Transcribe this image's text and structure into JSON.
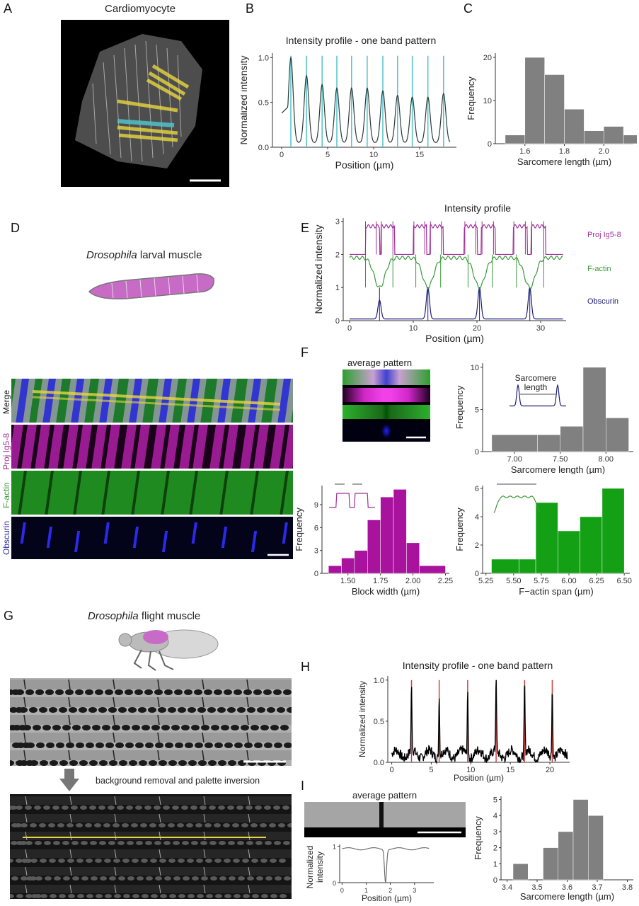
{
  "panels": {
    "A": {
      "letter": "A",
      "title": "Cardiomyocyte"
    },
    "B": {
      "letter": "B",
      "title": "Intensity profile - one band pattern"
    },
    "C": {
      "letter": "C"
    },
    "D": {
      "letter": "D",
      "title_italic": "Drosophila",
      "title_rest": " larval muscle"
    },
    "E": {
      "letter": "E",
      "title": "Intensity profile"
    },
    "F": {
      "letter": "F",
      "avg_title": "average pattern",
      "inset_label_1": "Sarcomere",
      "inset_label_2": "length"
    },
    "G": {
      "letter": "G",
      "title_italic": "Drosophila",
      "title_rest": " flight muscle",
      "arrow_caption": "background removal and palette inversion"
    },
    "H": {
      "letter": "H",
      "title": "Intensity profile - one band pattern"
    },
    "I": {
      "letter": "I",
      "avg_title": "average pattern"
    }
  },
  "channels": {
    "merge": "Merge",
    "proj": "Proj Ig5-8",
    "factin": "F-actin",
    "obscurin": "Obscurin"
  },
  "colors": {
    "magenta": "#a0309a",
    "green": "#3a9a3a",
    "navy": "#1d1d7a",
    "cyan": "#4fc3c8",
    "yellow": "#e8d640",
    "hist_gray": "#808080",
    "hist_magenta": "#a8129c",
    "hist_green": "#14a014",
    "red": "#d04040"
  },
  "chart_data": [
    {
      "id": "B",
      "type": "line",
      "title": "Intensity profile - one band pattern",
      "xlabel": "Position (µm)",
      "ylabel": "Normalized intensity",
      "xlim": [
        -1,
        19
      ],
      "ylim": [
        0,
        1.05
      ],
      "xticks": [
        0,
        5,
        10,
        15
      ],
      "yticks": [
        "0.0",
        "0.5",
        "1.0"
      ],
      "peaks_x": [
        1.0,
        2.7,
        4.4,
        6.0,
        7.6,
        9.3,
        11.0,
        12.6,
        14.2,
        15.9,
        17.6
      ],
      "peaks_y": [
        1.0,
        0.8,
        0.7,
        0.66,
        0.66,
        0.66,
        0.63,
        0.58,
        0.56,
        0.56,
        0.6
      ]
    },
    {
      "id": "C",
      "type": "bar",
      "xlabel": "Sarcomere length (µm)",
      "ylabel": "Frequency",
      "bins": [
        [
          1.5,
          1.6
        ],
        [
          1.6,
          1.7
        ],
        [
          1.7,
          1.8
        ],
        [
          1.8,
          1.9
        ],
        [
          1.9,
          2.0
        ],
        [
          2.0,
          2.1
        ],
        [
          2.1,
          2.2
        ]
      ],
      "values": [
        2,
        20,
        16,
        8,
        3,
        4,
        2
      ],
      "ylim": [
        0,
        21
      ],
      "xticks": [
        "1.6",
        "1.8",
        "2.0"
      ],
      "yticks": [
        "0",
        "10",
        "20"
      ]
    },
    {
      "id": "E",
      "type": "line",
      "title": "Intensity profile",
      "xlabel": "Position (µm)",
      "ylabel": "Normalized intensity",
      "xlim": [
        -1,
        34
      ],
      "ylim": [
        0,
        3.1
      ],
      "xticks": [
        0,
        10,
        20,
        30
      ],
      "yticks": [
        "0",
        "1",
        "2",
        "3"
      ],
      "series": [
        {
          "name": "Proj Ig5-8"
        },
        {
          "name": "F-actin"
        },
        {
          "name": "Obscurin"
        }
      ],
      "obscurin_peaks": [
        4.7,
        12.3,
        20.4,
        28.3
      ]
    },
    {
      "id": "F1",
      "type": "bar",
      "xlabel": "Sarcomere length (µm)",
      "ylabel": "Frequency",
      "bins": [
        [
          6.75,
          7.25
        ],
        [
          7.25,
          7.5
        ],
        [
          7.5,
          7.75
        ],
        [
          7.75,
          8.0
        ],
        [
          8.0,
          8.25
        ]
      ],
      "values": [
        2,
        2,
        3,
        10,
        4
      ],
      "ylim": [
        0,
        10.5
      ],
      "xticks": [
        "7.00",
        "7.50",
        "8.00"
      ],
      "yticks": [
        "0",
        "5",
        "10"
      ]
    },
    {
      "id": "F2",
      "type": "bar",
      "xlabel": "Block width (µm)",
      "ylabel": "Frequency",
      "bins": [
        [
          1.35,
          1.45
        ],
        [
          1.45,
          1.55
        ],
        [
          1.55,
          1.65
        ],
        [
          1.65,
          1.75
        ],
        [
          1.75,
          1.85
        ],
        [
          1.85,
          1.95
        ],
        [
          1.95,
          2.05
        ],
        [
          2.05,
          2.25
        ]
      ],
      "values": [
        1,
        2,
        3,
        7,
        10,
        11,
        4,
        1
      ],
      "ylim": [
        0,
        11.5
      ],
      "xticks": [
        "1.50",
        "1.75",
        "2.00",
        "2.25"
      ],
      "yticks": [
        "0",
        "3",
        "6",
        "9"
      ]
    },
    {
      "id": "F3",
      "type": "bar",
      "xlabel": "F−actin span (µm)",
      "ylabel": "Frequency",
      "bins": [
        [
          5.3,
          5.55
        ],
        [
          5.55,
          5.7
        ],
        [
          5.7,
          5.9
        ],
        [
          5.9,
          6.1
        ],
        [
          6.1,
          6.3
        ],
        [
          6.3,
          6.5
        ]
      ],
      "values": [
        1,
        1,
        5,
        3,
        4,
        6
      ],
      "ylim": [
        0,
        6.2
      ],
      "xticks": [
        "5.25",
        "5.50",
        "5.75",
        "6.00",
        "6.25",
        "6.50"
      ],
      "yticks": [
        "0",
        "2",
        "4",
        "6"
      ]
    },
    {
      "id": "H",
      "type": "line",
      "title": "Intensity profile - one band pattern",
      "xlabel": "Position (µm)",
      "ylabel": "Normalized intensity",
      "xlim": [
        -0.5,
        22.5
      ],
      "ylim": [
        0,
        1.05
      ],
      "xticks": [
        0,
        5,
        10,
        15,
        20
      ],
      "yticks": [
        "0.0",
        "0.5",
        "1.0"
      ],
      "peaks_x": [
        2.5,
        6.0,
        9.6,
        13.2,
        16.8,
        20.3
      ],
      "peaks_y": [
        0.88,
        0.88,
        0.87,
        1.0,
        0.96,
        0.95
      ]
    },
    {
      "id": "I1",
      "type": "line",
      "xlabel": "Position (µm)",
      "ylabel": "Normalized intensity",
      "xlim": [
        -0.1,
        3.8
      ],
      "ylim": [
        0,
        1.05
      ],
      "xticks": [
        0,
        1,
        2,
        3
      ],
      "yticks": [
        "0",
        "1"
      ],
      "dip_x": 1.8
    },
    {
      "id": "I2",
      "type": "bar",
      "xlabel": "Sarcomere length (µm)",
      "ylabel": "Frequency",
      "bins": [
        [
          3.42,
          3.47
        ],
        [
          3.52,
          3.57
        ],
        [
          3.57,
          3.62
        ],
        [
          3.62,
          3.67
        ],
        [
          3.67,
          3.72
        ]
      ],
      "values": [
        1,
        2,
        3,
        5,
        4
      ],
      "ylim": [
        0,
        5.2
      ],
      "xticks": [
        "3.4",
        "3.5",
        "3.6",
        "3.7",
        "3.8"
      ],
      "yticks": [
        "0",
        "1",
        "2",
        "3",
        "4",
        "5"
      ]
    }
  ]
}
